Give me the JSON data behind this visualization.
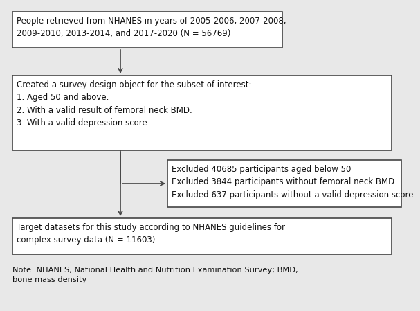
{
  "bg_color": "#e8e8e8",
  "box_color": "#ffffff",
  "box_edge_color": "#444444",
  "box1": {
    "text": "People retrieved from NHANES in years of 2005-2006, 2007-2008,\n2009-2010, 2013-2014, and 2017-2020 (N = 56769)"
  },
  "box2": {
    "text": "Created a survey design object for the subset of interest:\n1. Aged 50 and above.\n2. With a valid result of femoral neck BMD.\n3. With a valid depression score."
  },
  "box3": {
    "text": "Excluded 40685 participants aged below 50\nExcluded 3844 participants without femoral neck BMD\nExcluded 637 participants without a valid depression score"
  },
  "box4": {
    "text": "Target datasets for this study according to NHANES guidelines for\ncomplex survey data (N = 11603)."
  },
  "note": "Note: NHANES, National Health and Nutrition Examination Survey; BMD,\nbone mass density",
  "font_size": 8.5,
  "note_font_size": 8.2,
  "arrow_color": "#444444",
  "lw": 1.2
}
